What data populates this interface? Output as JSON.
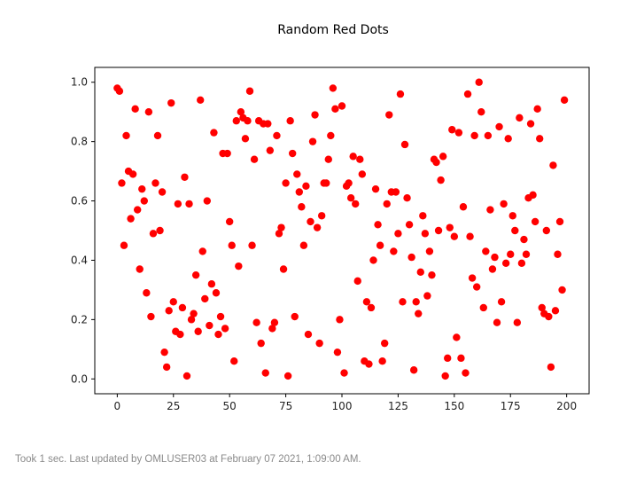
{
  "chart_data": {
    "type": "scatter",
    "title": "Random Red Dots",
    "xlabel": "",
    "ylabel": "",
    "xlim": [
      -10,
      210
    ],
    "ylim": [
      -0.05,
      1.05
    ],
    "xticks": [
      0,
      25,
      50,
      75,
      100,
      125,
      150,
      175,
      200
    ],
    "xtick_labels": [
      "0",
      "25",
      "50",
      "75",
      "100",
      "125",
      "150",
      "175",
      "200"
    ],
    "yticks": [
      0.0,
      0.2,
      0.4,
      0.6,
      0.8,
      1.0
    ],
    "ytick_labels": [
      "0.0",
      "0.2",
      "0.4",
      "0.6",
      "0.8",
      "1.0"
    ],
    "grid": false,
    "marker_color": "#ff0000",
    "points": [
      [
        0,
        0.98
      ],
      [
        1,
        0.97
      ],
      [
        2,
        0.66
      ],
      [
        3,
        0.45
      ],
      [
        4,
        0.82
      ],
      [
        5,
        0.7
      ],
      [
        6,
        0.54
      ],
      [
        7,
        0.69
      ],
      [
        8,
        0.91
      ],
      [
        9,
        0.57
      ],
      [
        10,
        0.37
      ],
      [
        11,
        0.64
      ],
      [
        12,
        0.6
      ],
      [
        13,
        0.29
      ],
      [
        14,
        0.9
      ],
      [
        15,
        0.21
      ],
      [
        16,
        0.49
      ],
      [
        17,
        0.66
      ],
      [
        18,
        0.82
      ],
      [
        19,
        0.5
      ],
      [
        20,
        0.63
      ],
      [
        21,
        0.09
      ],
      [
        22,
        0.04
      ],
      [
        23,
        0.23
      ],
      [
        24,
        0.93
      ],
      [
        25,
        0.26
      ],
      [
        26,
        0.16
      ],
      [
        27,
        0.59
      ],
      [
        28,
        0.15
      ],
      [
        29,
        0.24
      ],
      [
        30,
        0.68
      ],
      [
        31,
        0.01
      ],
      [
        32,
        0.59
      ],
      [
        33,
        0.2
      ],
      [
        34,
        0.22
      ],
      [
        35,
        0.35
      ],
      [
        36,
        0.16
      ],
      [
        37,
        0.94
      ],
      [
        38,
        0.43
      ],
      [
        39,
        0.27
      ],
      [
        40,
        0.6
      ],
      [
        41,
        0.18
      ],
      [
        42,
        0.32
      ],
      [
        43,
        0.83
      ],
      [
        44,
        0.29
      ],
      [
        45,
        0.15
      ],
      [
        46,
        0.21
      ],
      [
        47,
        0.76
      ],
      [
        48,
        0.17
      ],
      [
        49,
        0.76
      ],
      [
        50,
        0.53
      ],
      [
        51,
        0.45
      ],
      [
        52,
        0.06
      ],
      [
        53,
        0.87
      ],
      [
        54,
        0.38
      ],
      [
        55,
        0.9
      ],
      [
        56,
        0.88
      ],
      [
        57,
        0.81
      ],
      [
        58,
        0.87
      ],
      [
        59,
        0.97
      ],
      [
        60,
        0.45
      ],
      [
        61,
        0.74
      ],
      [
        62,
        0.19
      ],
      [
        63,
        0.87
      ],
      [
        64,
        0.12
      ],
      [
        65,
        0.86
      ],
      [
        66,
        0.02
      ],
      [
        67,
        0.86
      ],
      [
        68,
        0.77
      ],
      [
        69,
        0.17
      ],
      [
        70,
        0.19
      ],
      [
        71,
        0.82
      ],
      [
        72,
        0.49
      ],
      [
        73,
        0.51
      ],
      [
        74,
        0.37
      ],
      [
        75,
        0.66
      ],
      [
        76,
        0.01
      ],
      [
        77,
        0.87
      ],
      [
        78,
        0.76
      ],
      [
        79,
        0.21
      ],
      [
        80,
        0.69
      ],
      [
        81,
        0.63
      ],
      [
        82,
        0.58
      ],
      [
        83,
        0.45
      ],
      [
        84,
        0.65
      ],
      [
        85,
        0.15
      ],
      [
        86,
        0.53
      ],
      [
        87,
        0.8
      ],
      [
        88,
        0.89
      ],
      [
        89,
        0.51
      ],
      [
        90,
        0.12
      ],
      [
        91,
        0.55
      ],
      [
        92,
        0.66
      ],
      [
        93,
        0.66
      ],
      [
        94,
        0.74
      ],
      [
        95,
        0.82
      ],
      [
        96,
        0.98
      ],
      [
        97,
        0.91
      ],
      [
        98,
        0.09
      ],
      [
        99,
        0.2
      ],
      [
        100,
        0.92
      ],
      [
        101,
        0.02
      ],
      [
        102,
        0.65
      ],
      [
        103,
        0.66
      ],
      [
        104,
        0.61
      ],
      [
        105,
        0.75
      ],
      [
        106,
        0.59
      ],
      [
        107,
        0.33
      ],
      [
        108,
        0.74
      ],
      [
        109,
        0.69
      ],
      [
        110,
        0.06
      ],
      [
        111,
        0.26
      ],
      [
        112,
        0.05
      ],
      [
        113,
        0.24
      ],
      [
        114,
        0.4
      ],
      [
        115,
        0.64
      ],
      [
        116,
        0.52
      ],
      [
        117,
        0.45
      ],
      [
        118,
        0.06
      ],
      [
        119,
        0.12
      ],
      [
        120,
        0.59
      ],
      [
        121,
        0.89
      ],
      [
        122,
        0.63
      ],
      [
        123,
        0.43
      ],
      [
        124,
        0.63
      ],
      [
        125,
        0.49
      ],
      [
        126,
        0.96
      ],
      [
        127,
        0.26
      ],
      [
        128,
        0.79
      ],
      [
        129,
        0.61
      ],
      [
        130,
        0.52
      ],
      [
        131,
        0.41
      ],
      [
        132,
        0.03
      ],
      [
        133,
        0.26
      ],
      [
        134,
        0.22
      ],
      [
        135,
        0.36
      ],
      [
        136,
        0.55
      ],
      [
        137,
        0.49
      ],
      [
        138,
        0.28
      ],
      [
        139,
        0.43
      ],
      [
        140,
        0.35
      ],
      [
        141,
        0.74
      ],
      [
        142,
        0.73
      ],
      [
        143,
        0.5
      ],
      [
        144,
        0.67
      ],
      [
        145,
        0.75
      ],
      [
        146,
        0.01
      ],
      [
        147,
        0.07
      ],
      [
        148,
        0.51
      ],
      [
        149,
        0.84
      ],
      [
        150,
        0.48
      ],
      [
        151,
        0.14
      ],
      [
        152,
        0.83
      ],
      [
        153,
        0.07
      ],
      [
        154,
        0.58
      ],
      [
        155,
        0.02
      ],
      [
        156,
        0.96
      ],
      [
        157,
        0.48
      ],
      [
        158,
        0.34
      ],
      [
        159,
        0.82
      ],
      [
        160,
        0.31
      ],
      [
        161,
        1.0
      ],
      [
        162,
        0.9
      ],
      [
        163,
        0.24
      ],
      [
        164,
        0.43
      ],
      [
        165,
        0.82
      ],
      [
        166,
        0.57
      ],
      [
        167,
        0.37
      ],
      [
        168,
        0.41
      ],
      [
        169,
        0.19
      ],
      [
        170,
        0.85
      ],
      [
        171,
        0.26
      ],
      [
        172,
        0.59
      ],
      [
        173,
        0.39
      ],
      [
        174,
        0.81
      ],
      [
        175,
        0.42
      ],
      [
        176,
        0.55
      ],
      [
        177,
        0.5
      ],
      [
        178,
        0.19
      ],
      [
        179,
        0.88
      ],
      [
        180,
        0.39
      ],
      [
        181,
        0.47
      ],
      [
        182,
        0.42
      ],
      [
        183,
        0.61
      ],
      [
        184,
        0.86
      ],
      [
        185,
        0.62
      ],
      [
        186,
        0.53
      ],
      [
        187,
        0.91
      ],
      [
        188,
        0.81
      ],
      [
        189,
        0.24
      ],
      [
        190,
        0.22
      ],
      [
        191,
        0.5
      ],
      [
        192,
        0.21
      ],
      [
        193,
        0.04
      ],
      [
        194,
        0.72
      ],
      [
        195,
        0.23
      ],
      [
        196,
        0.42
      ],
      [
        197,
        0.53
      ],
      [
        198,
        0.3
      ],
      [
        199,
        0.94
      ]
    ]
  },
  "status": {
    "text": "Took 1 sec. Last updated by OMLUSER03 at February 07 2021, 1:09:00 AM."
  }
}
